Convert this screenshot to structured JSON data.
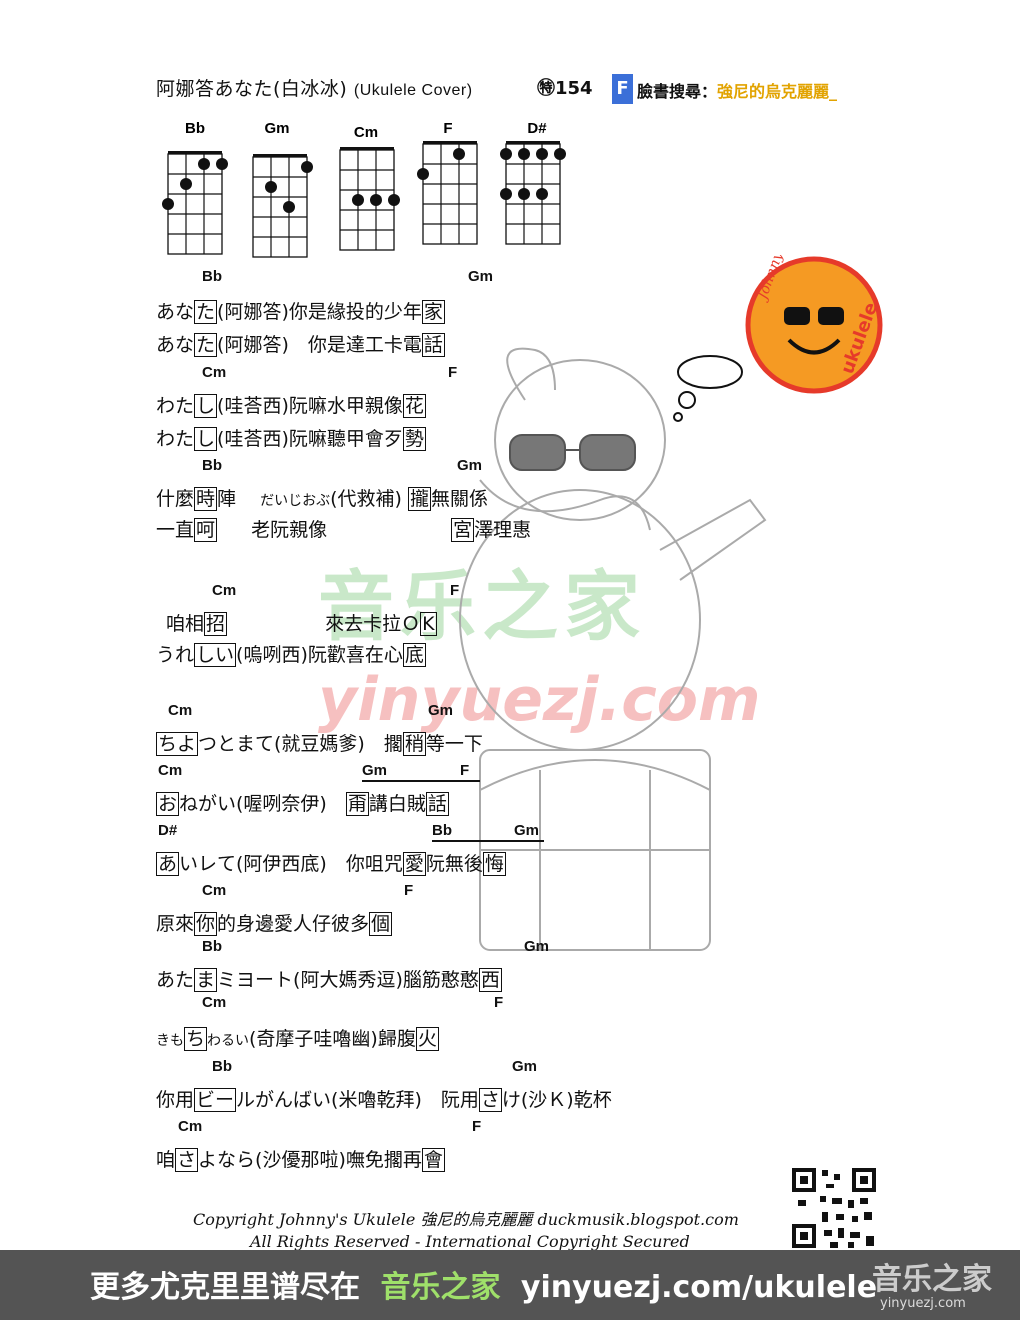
{
  "header": {
    "title": "阿娜答あなた(白冰冰)",
    "title_en": "(Ukulele Cover)",
    "special_no": "㊕154",
    "fb_badge": "F",
    "fb_label": "臉書搜尋：",
    "fb_name": "強尼的烏克麗麗_"
  },
  "chords": [
    "Bb",
    "Gm",
    "Cm",
    "F",
    "D#"
  ],
  "lyrics": {
    "c1": "Bb",
    "c2": "Gm",
    "l1a": "あな",
    "l1b": "た",
    "l1c": "(阿娜答)你是緣投的少年",
    "l1d": "家",
    "l2a": "あな",
    "l2b": "た",
    "l2c": "(阿娜答)　你是達工卡電",
    "l2d": "話",
    "c3": "Cm",
    "c4": "F",
    "l3a": "わた",
    "l3b": "し",
    "l3c": "(哇荅西)阮嘛水甲親像",
    "l3d": "花",
    "l4a": "わた",
    "l4b": "し",
    "l4c": "(哇荅西)阮嘛聽甲會歹",
    "l4d": "勢",
    "c5": "Bb",
    "c6": "Gm",
    "l5a": "什麼",
    "l5b": "時",
    "l5c": "陣",
    "l5d": "だいじおぶ",
    "l5e": "(代救補)",
    "l5f": "攏",
    "l5g": "無關係",
    "l6a": "一直",
    "l6b": "呵",
    "l6c": "老阮親像",
    "l6d": "宮",
    "l6e": "澤理惠",
    "c7": "Cm",
    "c8": "F",
    "l7a": "咱相",
    "l7b": "招",
    "l7c": "來去卡拉Ｏ",
    "l7d": "K",
    "l8a": "うれ",
    "l8b": "しい",
    "l8c": "(嗚咧西)阮歡喜在心",
    "l8d": "底",
    "c9": "Cm",
    "c10": "Gm",
    "l9a": "ちよ",
    "l9b": "つとまて(就豆媽爹)　擱",
    "l9c": "稍",
    "l9d": "等一下",
    "c11": "Cm",
    "c12": "Gm",
    "c13": "F",
    "l10a": "お",
    "l10b": "ねがい(喔咧奈伊)　",
    "l10c": "甭",
    "l10d": "講白賊",
    "l10e": "話",
    "c14": "D#",
    "c15": "Bb",
    "c16": "Gm",
    "l11a": "あ",
    "l11b": "いレて(阿伊西底)　你咀咒",
    "l11c": "愛",
    "l11d": "阮無後",
    "l11e": "悔",
    "c17": "Cm",
    "c18": "F",
    "l12a": "原來",
    "l12b": "你",
    "l12c": "的身邊愛人仔彼多",
    "l12d": "個",
    "c19": "Bb",
    "c20": "Gm",
    "l13a": "あた",
    "l13b": "ま",
    "l13c": "ミヨート(阿大媽秀逗)腦筋憨憨",
    "l13d": "西",
    "c21": "Cm",
    "c22": "F",
    "l14a": "きも",
    "l14b": "ち",
    "l14c": "わるい",
    "l14d": "(奇摩子哇嚕幽)歸腹",
    "l14e": "火",
    "c23": "Bb",
    "c24": "Gm",
    "l15a": "你用",
    "l15b": "ビー",
    "l15c": "ルがんばい(米嚕乾拜)　阮用",
    "l15d": "さ",
    "l15e": "け(沙Ｋ)乾杯",
    "c25": "Cm",
    "c26": "F",
    "l16a": "咱",
    "l16b": "さ",
    "l16c": "よなら(沙優那啦)嘸免擱再",
    "l16d": "會"
  },
  "watermark": {
    "cn": "音乐之家",
    "en": "yinyuezj.com"
  },
  "logo": {
    "left": "Johnny",
    "right": "ukulele"
  },
  "footer": {
    "copyright": "Copyright Johnny's Ukulele 強尼的烏克麗麗 duckmusik.blogspot.com",
    "rights": "All Rights Reserved - International Copyright Secured"
  },
  "banner": {
    "prefix": "更多尤克里里谱尽在",
    "site_cn": "音乐之家",
    "url": "yinyuezj.com/ukulele",
    "logo_cn": "音乐之家",
    "logo_url": "yinyuezj.com"
  },
  "colors": {
    "fb_blue": "#3b6fd8",
    "fb_name": "#e2a300",
    "banner_bg": "#545454",
    "banner_green": "#9fe06a",
    "logo_orange": "#f59a23",
    "logo_red": "#e63a2a"
  }
}
